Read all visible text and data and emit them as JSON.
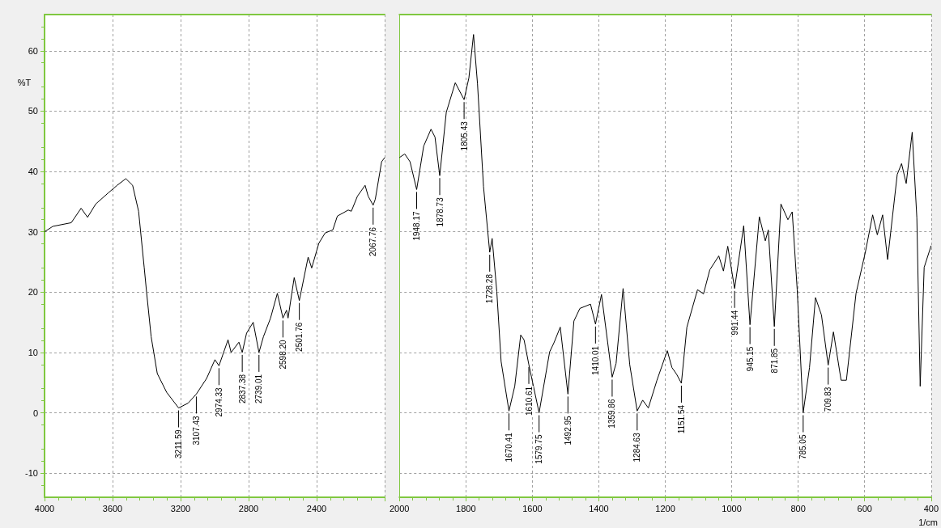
{
  "chart_data": [
    {
      "type": "line",
      "ylabel": "%T",
      "x": [
        4000,
        3951,
        3843,
        3785,
        3747,
        3699,
        3627,
        3573,
        3522,
        3482,
        3447,
        3414,
        3400,
        3373,
        3337,
        3282,
        3211.59,
        3156,
        3107.43,
        3047,
        2998,
        2974.33,
        2921,
        2903,
        2857,
        2837.38,
        2812,
        2773,
        2739.01,
        2713,
        2671,
        2631,
        2598.2,
        2577,
        2568,
        2532,
        2501.76,
        2450,
        2429,
        2387,
        2350,
        2305,
        2278,
        2214,
        2196,
        2160,
        2115,
        2097,
        2067.76,
        2055,
        2018,
        2000
      ],
      "values": [
        30.0,
        30.9,
        31.5,
        33.9,
        32.4,
        34.6,
        36.4,
        37.7,
        38.8,
        37.7,
        33.4,
        24.1,
        20,
        12.6,
        6.5,
        3.4,
        0.8,
        1.6,
        3.1,
        5.7,
        8.8,
        7.8,
        12.1,
        10.0,
        11.7,
        10.0,
        13.2,
        15.0,
        10.0,
        12.6,
        15.7,
        19.8,
        15.7,
        17.0,
        15.7,
        22.4,
        18.6,
        25.8,
        24.0,
        28.1,
        29.8,
        30.3,
        32.6,
        33.6,
        33.4,
        35.9,
        37.7,
        35.9,
        34.4,
        35.4,
        41.6,
        42.3
      ],
      "color": "#000000",
      "xlim": [
        4000,
        2000
      ],
      "xticks": [
        4000,
        3600,
        3200,
        2800,
        2400
      ],
      "ylim": [
        -14,
        66
      ],
      "yticks": [
        -10,
        0,
        10,
        20,
        30,
        40,
        50,
        60
      ],
      "grid": true,
      "marker": "none",
      "line_style": "solid",
      "annotations": [
        {
          "text": "3211.59",
          "x": 3211.59,
          "y": 0.8
        },
        {
          "text": "3107.43",
          "x": 3107.43,
          "y": 3.1
        },
        {
          "text": "2974.33",
          "x": 2974.33,
          "y": 7.8
        },
        {
          "text": "2837.38",
          "x": 2837.38,
          "y": 10.0
        },
        {
          "text": "2739.01",
          "x": 2739.01,
          "y": 10.0
        },
        {
          "text": "2598.20",
          "x": 2598.2,
          "y": 15.7
        },
        {
          "text": "2501.76",
          "x": 2501.76,
          "y": 18.6
        },
        {
          "text": "2067.76",
          "x": 2067.76,
          "y": 34.4
        }
      ]
    },
    {
      "type": "line",
      "xlabel": "1/cm",
      "x": [
        2000,
        1984,
        1968,
        1948.17,
        1927,
        1905,
        1893,
        1878.73,
        1859,
        1832,
        1805.43,
        1791,
        1777,
        1765,
        1747,
        1728.28,
        1721,
        1707,
        1694,
        1670.41,
        1653,
        1635,
        1625,
        1610.61,
        1579.75,
        1548,
        1535,
        1516,
        1492.95,
        1475,
        1457,
        1425,
        1410.01,
        1392,
        1359.86,
        1348,
        1327,
        1307,
        1284.63,
        1268,
        1251,
        1225,
        1194,
        1180,
        1166,
        1151.54,
        1135,
        1103,
        1085,
        1066,
        1039,
        1025,
        1012,
        991.44,
        964,
        945.15,
        917,
        899,
        890,
        871.85,
        852,
        831,
        818,
        803,
        785.05,
        766,
        748,
        730,
        709.83,
        694,
        671,
        655,
        626,
        598,
        576,
        562,
        546,
        531,
        502,
        489,
        475,
        457,
        443,
        433,
        421,
        400
      ],
      "values": [
        42.3,
        42.9,
        41.6,
        37.0,
        44.2,
        47.0,
        45.7,
        39.3,
        49.8,
        54.7,
        51.9,
        55.5,
        62.7,
        54.5,
        37.5,
        26.6,
        28.9,
        20.1,
        8.5,
        0.3,
        4.4,
        12.9,
        12.1,
        8.0,
        0,
        10.1,
        11.6,
        14.2,
        3.1,
        15.2,
        17.3,
        18.0,
        14.7,
        19.6,
        5.9,
        8.2,
        20.6,
        8.0,
        0.3,
        2.1,
        0.8,
        5.4,
        10.3,
        7.5,
        6.4,
        4.9,
        14.2,
        20.4,
        19.7,
        23.7,
        26.0,
        23.5,
        27.6,
        20.6,
        31.0,
        14.6,
        32.5,
        28.5,
        30.3,
        14.3,
        34.6,
        32.0,
        33.3,
        20.4,
        0,
        7.5,
        19.1,
        16.2,
        7.9,
        13.4,
        5.4,
        5.4,
        19.8,
        26.6,
        32.8,
        29.5,
        32.8,
        25.4,
        39.5,
        41.3,
        38.0,
        46.5,
        32.3,
        4.4,
        24.1,
        27.7
      ],
      "color": "#000000",
      "xlim": [
        2000,
        400
      ],
      "xticks": [
        2000,
        1800,
        1600,
        1400,
        1200,
        1000,
        800,
        600,
        400
      ],
      "ylim": [
        -14,
        66
      ],
      "yticks": [
        -10,
        0,
        10,
        20,
        30,
        40,
        50,
        60
      ],
      "grid": true,
      "marker": "none",
      "line_style": "solid",
      "tick_labels": "x",
      "annotations": [
        {
          "text": "1948.17",
          "x": 1948.17,
          "y": 37.0
        },
        {
          "text": "1878.73",
          "x": 1878.73,
          "y": 39.3
        },
        {
          "text": "1805.43",
          "x": 1805.43,
          "y": 51.9
        },
        {
          "text": "1728.28",
          "x": 1728.28,
          "y": 26.6
        },
        {
          "text": "1670.41",
          "x": 1670.41,
          "y": 0.3
        },
        {
          "text": "1610.61",
          "x": 1610.61,
          "y": 8.0
        },
        {
          "text": "1579.75",
          "x": 1579.75,
          "y": 0
        },
        {
          "text": "1492.95",
          "x": 1492.95,
          "y": 3.1
        },
        {
          "text": "1410.01",
          "x": 1410.01,
          "y": 14.7
        },
        {
          "text": "1359.86",
          "x": 1359.86,
          "y": 5.9
        },
        {
          "text": "1284.63",
          "x": 1284.63,
          "y": 0.3
        },
        {
          "text": "1151.54",
          "x": 1151.54,
          "y": 4.9
        },
        {
          "text": "991.44",
          "x": 991.44,
          "y": 20.6
        },
        {
          "text": "945.15",
          "x": 945.15,
          "y": 14.6
        },
        {
          "text": "871.85",
          "x": 871.85,
          "y": 14.3
        },
        {
          "text": "785.05",
          "x": 785.05,
          "y": 0
        },
        {
          "text": "709.83",
          "x": 709.83,
          "y": 7.9
        }
      ]
    }
  ]
}
